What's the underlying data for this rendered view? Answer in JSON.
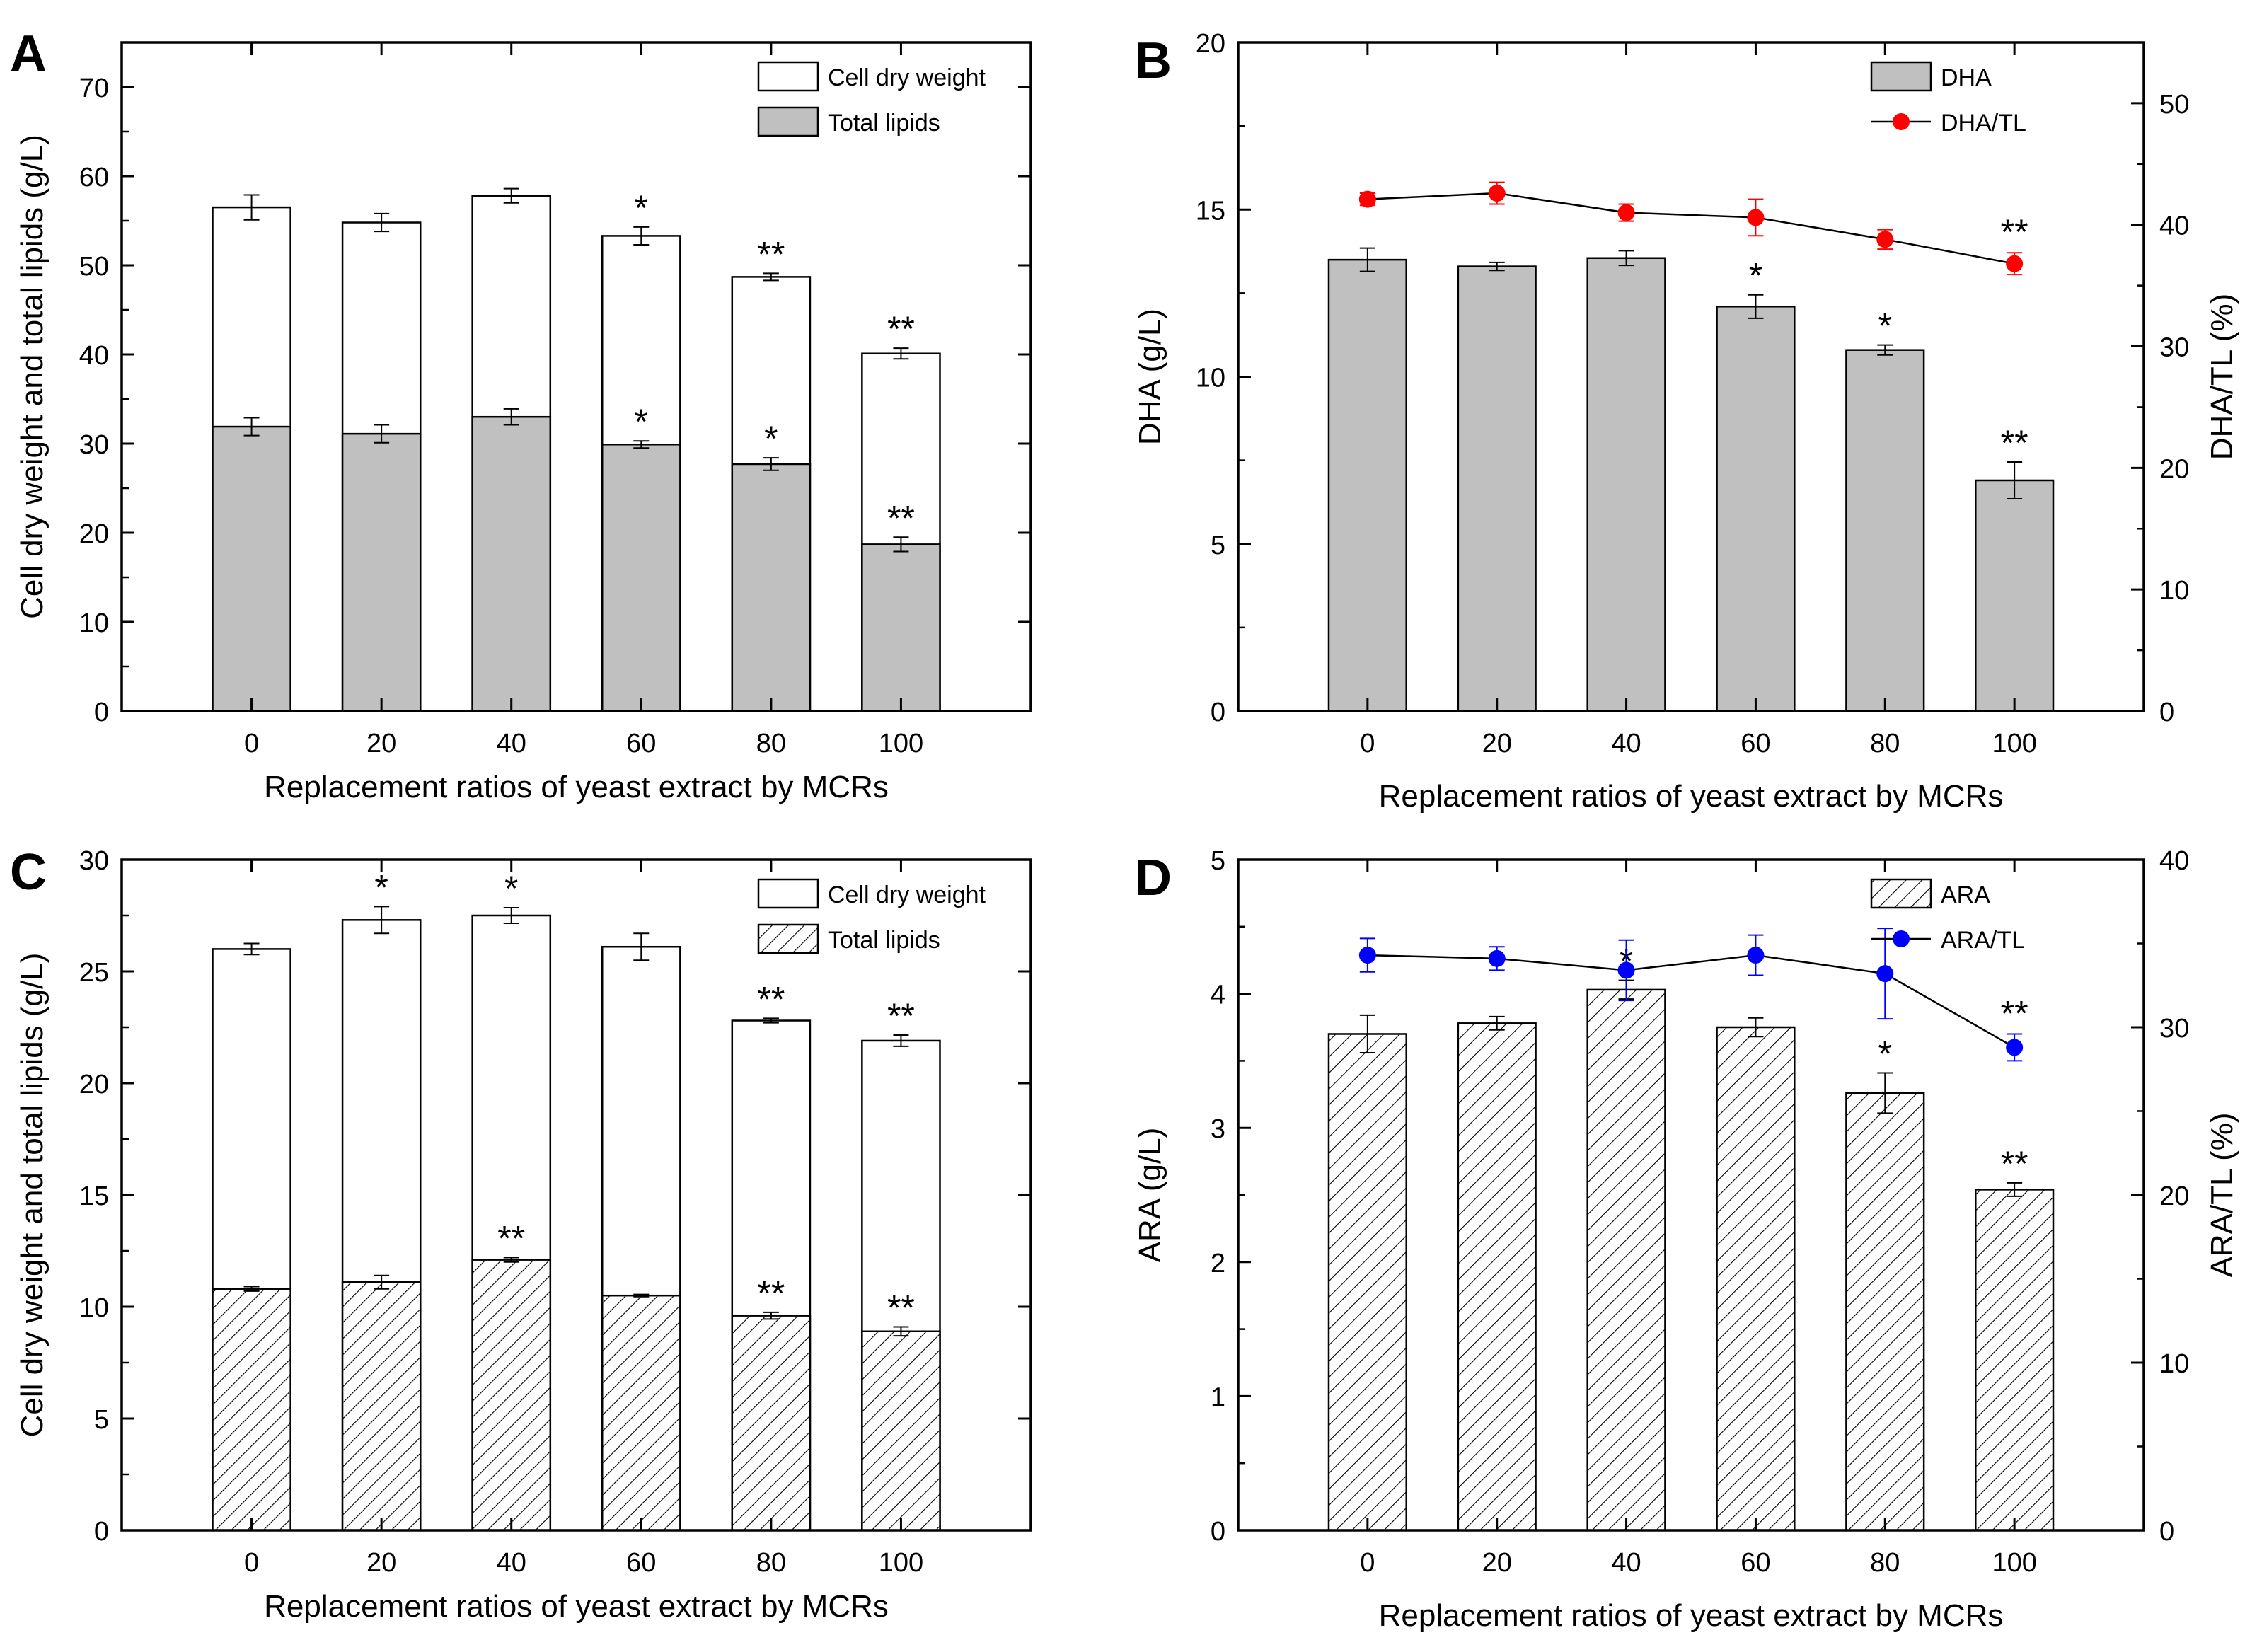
{
  "chart_data": [
    {
      "panel_label": "A",
      "type": "bar",
      "categories": [
        "0",
        "20",
        "40",
        "60",
        "80",
        "100"
      ],
      "xlabel": "Replacement ratios of yeast extract by MCRs",
      "ylabel": "Cell dry weight and total lipids (g/L)",
      "ylim": [
        0,
        75
      ],
      "yticks": [
        "0",
        "10",
        "20",
        "30",
        "40",
        "50",
        "60",
        "70"
      ],
      "legend_position": "top-right",
      "series": [
        {
          "name": "Cell dry weight",
          "style": "open",
          "values": [
            56.5,
            54.8,
            57.8,
            53.3,
            48.7,
            40.1
          ],
          "errors": [
            1.4,
            1.0,
            0.8,
            1.0,
            0.4,
            0.6
          ],
          "significance": [
            "",
            "",
            "",
            "*",
            "**",
            "**"
          ]
        },
        {
          "name": "Total lipids",
          "style": "gray",
          "values": [
            31.9,
            31.1,
            33.0,
            29.9,
            27.7,
            18.7
          ],
          "errors": [
            1.0,
            1.0,
            0.9,
            0.4,
            0.7,
            0.8
          ],
          "significance": [
            "",
            "",
            "",
            "*",
            "*",
            "**"
          ]
        }
      ]
    },
    {
      "panel_label": "B",
      "type": "bar",
      "categories": [
        "0",
        "20",
        "40",
        "60",
        "80",
        "100"
      ],
      "xlabel": "Replacement ratios of yeast extract by MCRs",
      "ylabel": "DHA (g/L)",
      "ylabel_right": "DHA/TL (%)",
      "ylim": [
        0,
        20
      ],
      "ylim_right": [
        0,
        55
      ],
      "yticks": [
        "0",
        "5",
        "10",
        "15",
        "20"
      ],
      "yticks_right": [
        "0",
        "10",
        "20",
        "30",
        "40",
        "50"
      ],
      "legend_position": "top-right",
      "series": [
        {
          "name": "DHA",
          "style": "gray",
          "axis": "left",
          "values": [
            13.5,
            13.3,
            13.55,
            12.1,
            10.8,
            6.9
          ],
          "errors": [
            0.35,
            0.12,
            0.22,
            0.35,
            0.15,
            0.55
          ],
          "significance": [
            "",
            "",
            "",
            "*",
            "*",
            "**"
          ]
        },
        {
          "name": "DHA/TL",
          "style": "line",
          "color": "#ff0000",
          "axis": "right",
          "values": [
            42.1,
            42.6,
            41.0,
            40.6,
            38.8,
            36.8
          ],
          "errors": [
            0.5,
            0.9,
            0.7,
            1.5,
            0.8,
            0.9
          ],
          "significance": [
            "",
            "",
            "",
            "",
            "",
            "**"
          ]
        }
      ]
    },
    {
      "panel_label": "C",
      "type": "bar",
      "categories": [
        "0",
        "20",
        "40",
        "60",
        "80",
        "100"
      ],
      "xlabel": "Replacement ratios of yeast extract by MCRs",
      "ylabel": "Cell dry weight and total lipids (g/L)",
      "ylim": [
        0,
        30
      ],
      "yticks": [
        "0",
        "5",
        "10",
        "15",
        "20",
        "25",
        "30"
      ],
      "legend_position": "top-right",
      "series": [
        {
          "name": "Cell dry weight",
          "style": "open",
          "values": [
            26.0,
            27.3,
            27.5,
            26.1,
            22.8,
            21.9
          ],
          "errors": [
            0.25,
            0.6,
            0.35,
            0.6,
            0.1,
            0.25
          ],
          "significance": [
            "",
            "*",
            "*",
            "",
            "**",
            "**"
          ]
        },
        {
          "name": "Total lipids",
          "style": "hatch",
          "values": [
            10.8,
            11.1,
            12.1,
            10.5,
            9.6,
            8.9
          ],
          "errors": [
            0.1,
            0.3,
            0.1,
            0.05,
            0.15,
            0.2
          ],
          "significance": [
            "",
            "",
            "**",
            "",
            "**",
            "**"
          ]
        }
      ]
    },
    {
      "panel_label": "D",
      "type": "bar",
      "categories": [
        "0",
        "20",
        "40",
        "60",
        "80",
        "100"
      ],
      "xlabel": "Replacement ratios of yeast extract by MCRs",
      "ylabel": "ARA (g/L)",
      "ylabel_right": "ARA/TL (%)",
      "ylim": [
        0,
        5
      ],
      "ylim_right": [
        0,
        40
      ],
      "yticks": [
        "0",
        "1",
        "2",
        "3",
        "4",
        "5"
      ],
      "yticks_right": [
        "0",
        "10",
        "20",
        "30",
        "40"
      ],
      "legend_position": "top-right",
      "series": [
        {
          "name": "ARA",
          "style": "hatch",
          "axis": "left",
          "values": [
            3.7,
            3.78,
            4.03,
            3.75,
            3.26,
            2.54
          ],
          "errors": [
            0.14,
            0.05,
            0.07,
            0.07,
            0.15,
            0.05
          ],
          "significance": [
            "",
            "",
            "*",
            "",
            "*",
            "**"
          ]
        },
        {
          "name": "ARA/TL",
          "style": "line",
          "color": "#0000ff",
          "axis": "right",
          "values": [
            34.3,
            34.1,
            33.4,
            34.3,
            33.2,
            28.8
          ],
          "errors": [
            1.0,
            0.7,
            1.8,
            1.2,
            2.7,
            0.8
          ],
          "significance": [
            "",
            "",
            "",
            "",
            "",
            "**"
          ]
        }
      ]
    }
  ]
}
